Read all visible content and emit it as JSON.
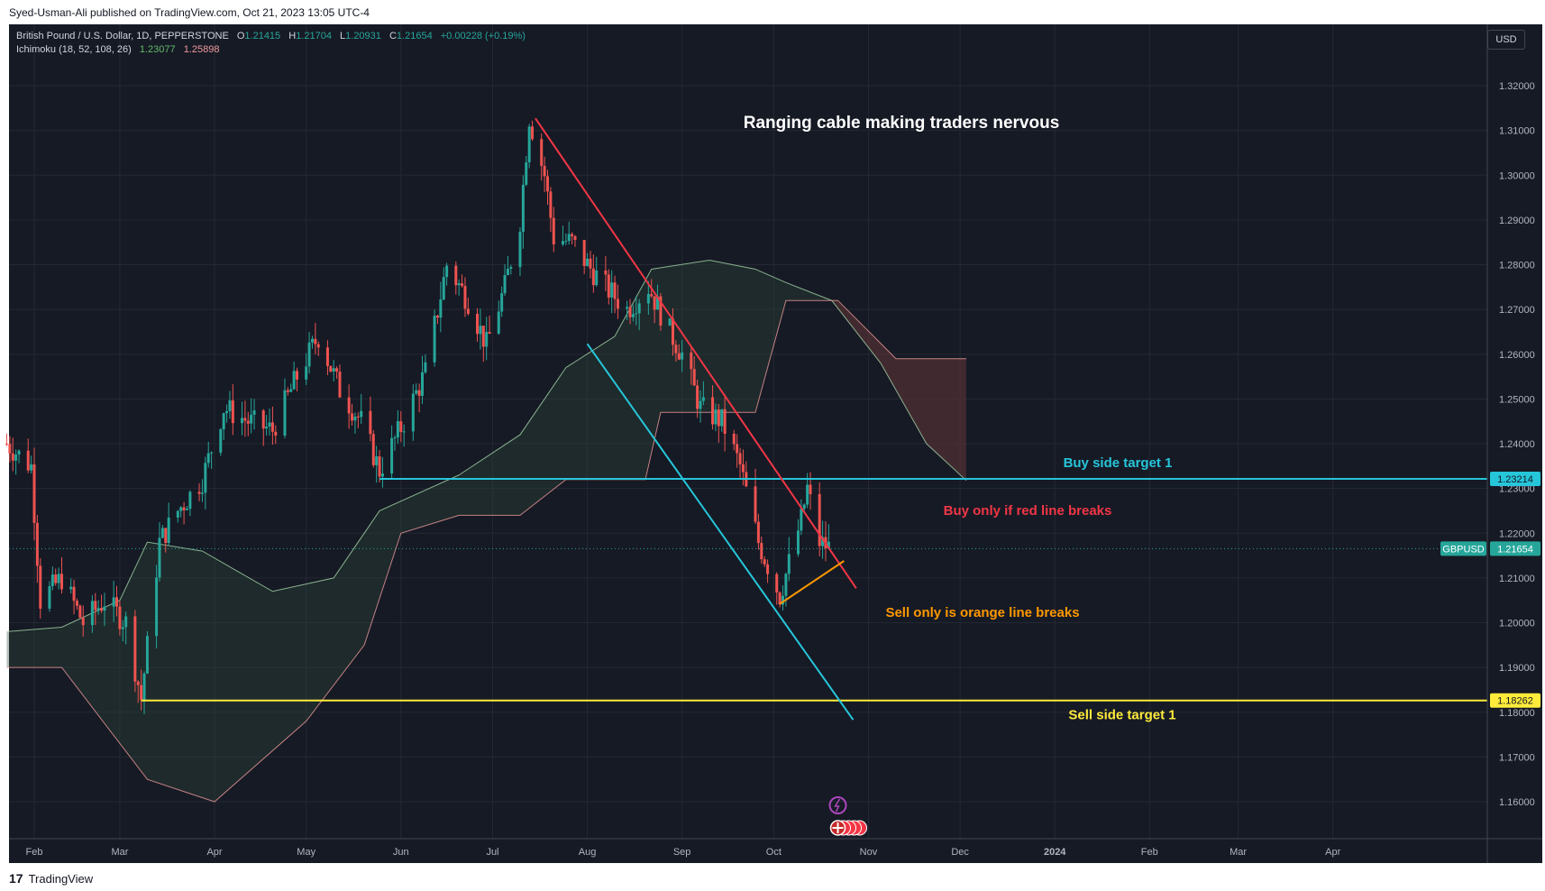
{
  "header": {
    "published": "Syed-Usman-Ali published on TradingView.com, Oct 21, 2023 13:05 UTC-4"
  },
  "legend": {
    "symbol": "British Pound / U.S. Dollar, 1D, PEPPERSTONE",
    "o_label": "O",
    "o": "1.21415",
    "h_label": "H",
    "h": "1.21704",
    "l_label": "L",
    "l": "1.20931",
    "c_label": "C",
    "c": "1.21654",
    "change": "+0.00228 (+0.19%)",
    "indicator": "Ichimoku (18, 52, 108, 26)",
    "ind_v1": "1.23077",
    "ind_v2": "1.25898"
  },
  "currency_button": "USD",
  "footer": {
    "brand": "TradingView",
    "logo": "17"
  },
  "chart_data": {
    "type": "candlestick",
    "title": "Ranging cable making traders nervous",
    "y_axis": {
      "range": [
        1.151,
        1.327
      ],
      "ticks": [
        "1.32000",
        "1.31000",
        "1.30000",
        "1.29000",
        "1.28000",
        "1.27000",
        "1.26000",
        "1.25000",
        "1.24000",
        "1.23000",
        "1.22000",
        "1.21000",
        "1.20000",
        "1.19000",
        "1.18000",
        "1.17000",
        "1.16000"
      ]
    },
    "x_axis": {
      "ticks": [
        "Feb",
        "Mar",
        "Apr",
        "May",
        "Jun",
        "Jul",
        "Aug",
        "Sep",
        "Oct",
        "Nov",
        "Dec",
        "2024",
        "Feb",
        "Mar",
        "Apr"
      ]
    },
    "price_labels": {
      "buy_level": "1.23214",
      "sell_level": "1.18262",
      "last": "1.21654",
      "symbol_tag": "GBPUSD"
    },
    "annotations": [
      {
        "text": "Buy side target 1",
        "color": "#26c6da"
      },
      {
        "text": "Buy only if red line breaks",
        "color": "#f23645"
      },
      {
        "text": "Sell only is orange line breaks",
        "color": "#ff9800"
      },
      {
        "text": "Sell side target 1",
        "color": "#ffeb3b"
      }
    ],
    "levels": {
      "buy_side_target": 1.23214,
      "sell_side_target": 1.18262,
      "last_price": 1.21654
    },
    "trendlines": [
      {
        "name": "red-resistance",
        "color": "#f23645",
        "from": [
          "2023-07-15",
          1.3127
        ],
        "to": [
          "2023-10-28",
          1.2077
        ]
      },
      {
        "name": "cyan-support",
        "color": "#26c6da",
        "from": [
          "2023-08-01",
          1.2623
        ],
        "to": [
          "2023-10-27",
          1.1783
        ]
      },
      {
        "name": "orange-support",
        "color": "#ff9800",
        "from": [
          "2023-10-03",
          1.2042
        ],
        "to": [
          "2023-10-24",
          1.2138
        ]
      }
    ],
    "ohlc_path": [
      [
        "2023-01-23",
        1.24
      ],
      [
        "2023-01-31",
        1.235
      ],
      [
        "2023-02-03",
        1.205
      ],
      [
        "2023-02-10",
        1.21
      ],
      [
        "2023-02-17",
        1.2
      ],
      [
        "2023-02-24",
        1.205
      ],
      [
        "2023-03-03",
        1.2
      ],
      [
        "2023-03-08",
        1.183
      ],
      [
        "2023-03-14",
        1.218
      ],
      [
        "2023-03-20",
        1.225
      ],
      [
        "2023-03-28",
        1.232
      ],
      [
        "2023-04-04",
        1.248
      ],
      [
        "2023-04-12",
        1.245
      ],
      [
        "2023-04-20",
        1.243
      ],
      [
        "2023-04-28",
        1.255
      ],
      [
        "2023-05-05",
        1.264
      ],
      [
        "2023-05-12",
        1.252
      ],
      [
        "2023-05-19",
        1.245
      ],
      [
        "2023-05-25",
        1.234
      ],
      [
        "2023-06-02",
        1.245
      ],
      [
        "2023-06-09",
        1.256
      ],
      [
        "2023-06-16",
        1.28
      ],
      [
        "2023-06-23",
        1.272
      ],
      [
        "2023-06-29",
        1.262
      ],
      [
        "2023-07-05",
        1.275
      ],
      [
        "2023-07-10",
        1.29
      ],
      [
        "2023-07-13",
        1.313
      ],
      [
        "2023-07-18",
        1.3
      ],
      [
        "2023-07-21",
        1.286
      ],
      [
        "2023-07-27",
        1.285
      ],
      [
        "2023-08-01",
        1.28
      ],
      [
        "2023-08-07",
        1.275
      ],
      [
        "2023-08-14",
        1.27
      ],
      [
        "2023-08-21",
        1.275
      ],
      [
        "2023-08-28",
        1.265
      ],
      [
        "2023-09-01",
        1.26
      ],
      [
        "2023-09-07",
        1.248
      ],
      [
        "2023-09-14",
        1.245
      ],
      [
        "2023-09-20",
        1.235
      ],
      [
        "2023-09-26",
        1.218
      ],
      [
        "2023-10-03",
        1.206
      ],
      [
        "2023-10-10",
        1.223
      ],
      [
        "2023-10-12",
        1.23
      ],
      [
        "2023-10-16",
        1.218
      ],
      [
        "2023-10-20",
        1.2165
      ]
    ],
    "ichimoku": {
      "params": [
        18,
        52,
        108,
        26
      ],
      "values": [
        "1.23077",
        "1.25898"
      ],
      "span_a": [
        [
          "2023-01-23",
          1.198
        ],
        [
          "2023-02-10",
          1.199
        ],
        [
          "2023-03-01",
          1.205
        ],
        [
          "2023-03-10",
          1.218
        ],
        [
          "2023-03-28",
          1.216
        ],
        [
          "2023-04-20",
          1.207
        ],
        [
          "2023-05-10",
          1.21
        ],
        [
          "2023-05-25",
          1.225
        ],
        [
          "2023-06-20",
          1.233
        ],
        [
          "2023-07-10",
          1.242
        ],
        [
          "2023-07-25",
          1.257
        ],
        [
          "2023-08-10",
          1.264
        ],
        [
          "2023-08-22",
          1.279
        ],
        [
          "2023-09-10",
          1.281
        ],
        [
          "2023-09-25",
          1.279
        ],
        [
          "2023-10-05",
          1.276
        ],
        [
          "2023-10-20",
          1.272
        ],
        [
          "2023-11-05",
          1.258
        ],
        [
          "2023-11-20",
          1.24
        ],
        [
          "2023-12-03",
          1.2318
        ]
      ],
      "span_b": [
        [
          "2023-01-23",
          1.19
        ],
        [
          "2023-02-10",
          1.19
        ],
        [
          "2023-03-10",
          1.165
        ],
        [
          "2023-04-01",
          1.16
        ],
        [
          "2023-05-01",
          1.178
        ],
        [
          "2023-05-20",
          1.195
        ],
        [
          "2023-06-01",
          1.22
        ],
        [
          "2023-06-20",
          1.224
        ],
        [
          "2023-07-10",
          1.224
        ],
        [
          "2023-07-25",
          1.232
        ],
        [
          "2023-08-20",
          1.232
        ],
        [
          "2023-08-25",
          1.247
        ],
        [
          "2023-09-25",
          1.247
        ],
        [
          "2023-10-05",
          1.272
        ],
        [
          "2023-10-22",
          1.272
        ],
        [
          "2023-11-10",
          1.259
        ],
        [
          "2023-12-03",
          1.259
        ]
      ]
    }
  }
}
